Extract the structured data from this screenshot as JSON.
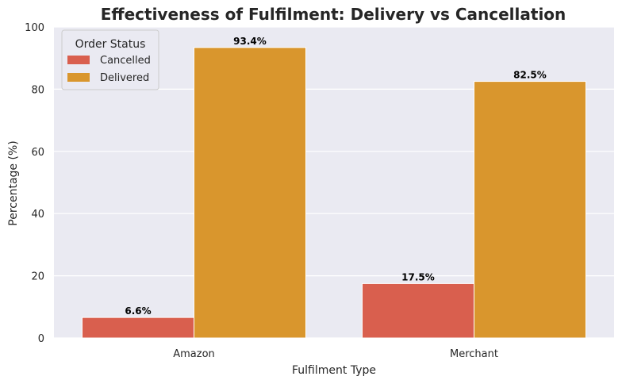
{
  "chart_data": {
    "type": "bar",
    "title": "Effectiveness of Fulfilment: Delivery vs Cancellation",
    "xlabel": "Fulfilment Type",
    "ylabel": "Percentage (%)",
    "categories": [
      "Amazon",
      "Merchant"
    ],
    "ylim": [
      0,
      100
    ],
    "yticks": [
      0,
      20,
      40,
      60,
      80,
      100
    ],
    "grid": true,
    "legend": {
      "title": "Order Status",
      "placement": "top-left"
    },
    "series": [
      {
        "name": "Cancelled",
        "values": [
          6.6,
          17.5
        ],
        "labels": [
          "6.6%",
          "17.5%"
        ],
        "color": "#d95f4e"
      },
      {
        "name": "Delivered",
        "values": [
          93.4,
          82.5
        ],
        "labels": [
          "93.4%",
          "82.5%"
        ],
        "color": "#d9962d"
      }
    ]
  },
  "colors": {
    "plot_background": "#eaeaf2",
    "grid": "#ffffff",
    "text": "#262626"
  }
}
